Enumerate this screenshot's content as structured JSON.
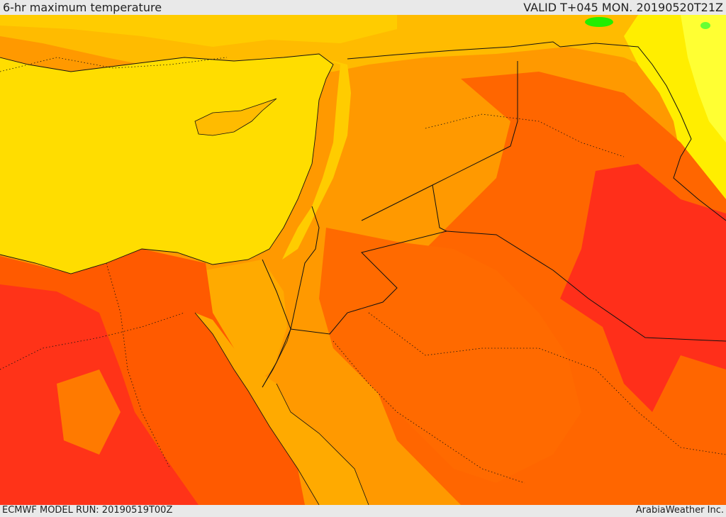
{
  "header": {
    "title": "6-hr maximum temperature",
    "valid": "VALID T+045 MON. 20190520T21Z"
  },
  "footer": {
    "model_run": "ECMWF MODEL RUN: 20190519T00Z",
    "credit": "ArabiaWeather Inc."
  },
  "map": {
    "colors": {
      "sea": "#ffdd00",
      "yellow": "#ffee00",
      "light_orange": "#ffbb00",
      "orange": "#ff9900",
      "dark_orange": "#ff6600",
      "red_orange": "#ff4411",
      "red": "#ff2222",
      "green": "#22ee00",
      "border": "#111111"
    }
  }
}
